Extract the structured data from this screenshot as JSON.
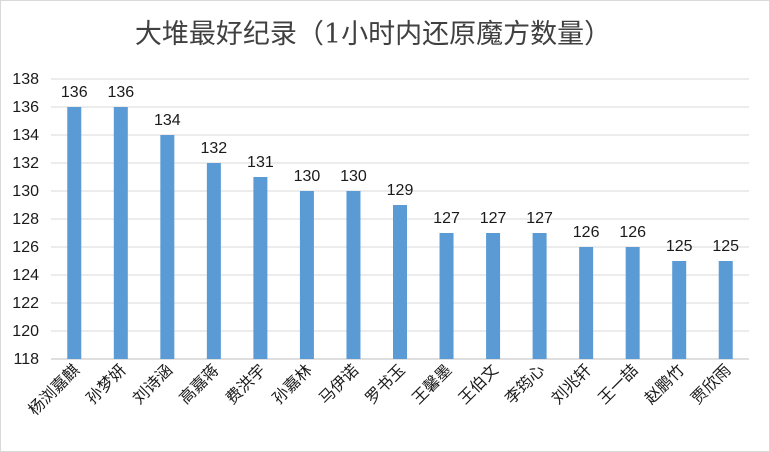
{
  "chart_data": {
    "type": "bar",
    "title": "大堆最好纪录（1小时内还原魔方数量）",
    "categories": [
      "杨浏嘉麒",
      "孙梦妍",
      "刘诗涵",
      "高嘉蒋",
      "费洪宇",
      "孙嘉林",
      "马伊诺",
      "罗书玉",
      "王馨墨",
      "王伯文",
      "李筠心",
      "刘兆轩",
      "王一喆",
      "赵鹏竹",
      "贾欣雨"
    ],
    "values": [
      136,
      136,
      134,
      132,
      131,
      130,
      130,
      129,
      127,
      127,
      127,
      126,
      126,
      125,
      125
    ],
    "xlabel": "",
    "ylabel": "",
    "ylim": [
      118,
      138
    ],
    "yticks": [
      118,
      120,
      122,
      124,
      126,
      128,
      130,
      132,
      134,
      136,
      138
    ],
    "grid": true,
    "legend": "none",
    "data_labels": true,
    "bar_color": "#5b9bd5"
  }
}
